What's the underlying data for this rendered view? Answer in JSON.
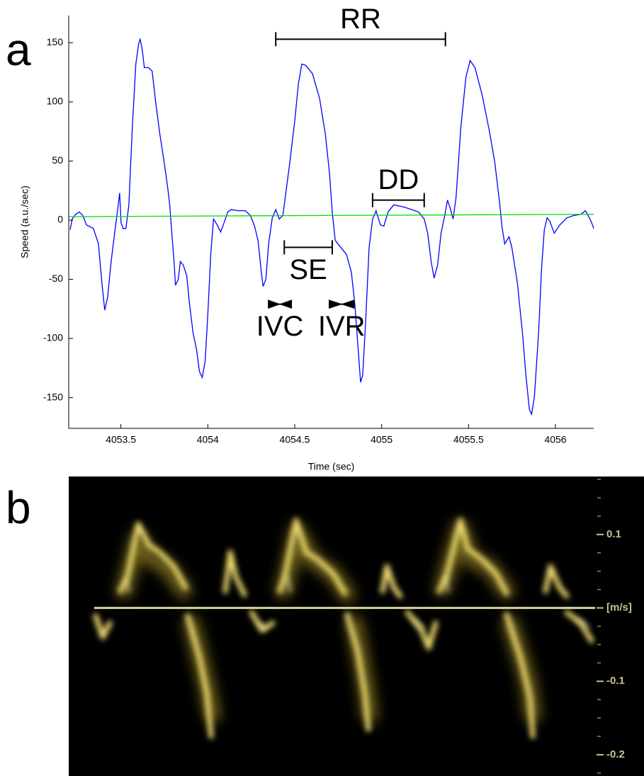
{
  "chart_data": [
    {
      "type": "line",
      "panel_label": "a",
      "xlabel": "Time (sec)",
      "ylabel": "Speed (a.u./sec)",
      "xlim": [
        4053.2,
        4056.22
      ],
      "ylim": [
        -176,
        173
      ],
      "xticks": [
        4053.5,
        4054,
        4054.5,
        4055,
        4055.5,
        4056
      ],
      "yticks": [
        -150,
        -100,
        -50,
        0,
        50,
        100,
        150
      ],
      "series": [
        {
          "color": "#0000ff",
          "x": [
            4053.208,
            4053.22,
            4053.241,
            4053.261,
            4053.281,
            4053.302,
            4053.342,
            4053.371,
            4053.391,
            4053.407,
            4053.424,
            4053.444,
            4053.464,
            4053.485,
            4053.493,
            4053.501,
            4053.513,
            4053.529,
            4053.546,
            4053.566,
            4053.586,
            4053.602,
            4053.611,
            4053.623,
            4053.635,
            4053.659,
            4053.68,
            4053.7,
            4053.724,
            4053.749,
            4053.769,
            4053.781,
            4053.793,
            4053.806,
            4053.814,
            4053.83,
            4053.842,
            4053.859,
            4053.879,
            4053.895,
            4053.915,
            4053.936,
            4053.952,
            4053.968,
            4053.985,
            4054.001,
            4054.017,
            4054.033,
            4054.054,
            4054.074,
            4054.094,
            4054.115,
            4054.135,
            4054.176,
            4054.216,
            4054.245,
            4054.269,
            4054.289,
            4054.306,
            4054.318,
            4054.334,
            4054.35,
            4054.371,
            4054.391,
            4054.411,
            4054.432,
            4054.448,
            4054.472,
            4054.501,
            4054.521,
            4054.541,
            4054.562,
            4054.602,
            4054.643,
            4054.676,
            4054.7,
            4054.716,
            4054.733,
            4054.765,
            4054.798,
            4054.826,
            4054.846,
            4054.867,
            4054.879,
            4054.891,
            4054.907,
            4054.928,
            4054.948,
            4054.968,
            4054.993,
            4055.013,
            4055.037,
            4055.07,
            4055.131,
            4055.212,
            4055.245,
            4055.265,
            4055.285,
            4055.302,
            4055.322,
            4055.342,
            4055.363,
            4055.379,
            4055.395,
            4055.411,
            4055.428,
            4055.456,
            4055.485,
            4055.509,
            4055.537,
            4055.578,
            4055.619,
            4055.651,
            4055.68,
            4055.692,
            4055.708,
            4055.733,
            4055.749,
            4055.781,
            4055.81,
            4055.83,
            4055.85,
            4055.863,
            4055.879,
            4055.903,
            4055.92,
            4055.936,
            4055.952,
            4055.968,
            4055.993,
            4056.025,
            4056.066,
            4056.107,
            4056.147,
            4056.172,
            4056.188,
            4056.208,
            4056.22
          ],
          "values": [
            -8,
            1,
            5,
            7,
            4,
            -4,
            -7,
            -20,
            -53,
            -76,
            -65,
            -35,
            -11,
            13,
            23,
            -2,
            -7,
            -7,
            13,
            79,
            132,
            149,
            153,
            144,
            129,
            129,
            126,
            100,
            73,
            49,
            28,
            13,
            -11,
            -35,
            -55,
            -50,
            -35,
            -38,
            -47,
            -71,
            -95,
            -110,
            -128,
            -133,
            -119,
            -77,
            -29,
            1,
            -4,
            -10,
            -2,
            7,
            9,
            8,
            8,
            4,
            -5,
            -17,
            -41,
            -56,
            -50,
            -20,
            2,
            9,
            1,
            4,
            22,
            49,
            85,
            115,
            132,
            131,
            124,
            103,
            73,
            40,
            7,
            -17,
            -23,
            -29,
            -44,
            -71,
            -113,
            -137,
            -131,
            -89,
            -23,
            1,
            8,
            -4,
            -5,
            7,
            13,
            11,
            7,
            1,
            -11,
            -35,
            -49,
            -38,
            -11,
            4,
            17,
            10,
            1,
            19,
            79,
            121,
            135,
            129,
            106,
            76,
            49,
            13,
            -5,
            -20,
            -14,
            -23,
            -53,
            -95,
            -131,
            -160,
            -164,
            -149,
            -95,
            -41,
            -8,
            2,
            -1,
            -11,
            -4,
            2,
            4,
            5,
            8,
            4,
            -2,
            -7
          ]
        },
        {
          "color": "#00e000",
          "x": [
            4053.2,
            4056.22
          ],
          "values": [
            3,
            5
          ]
        }
      ],
      "annotations": [
        {
          "text": "RR",
          "style": "bracket",
          "label_pos": "above",
          "x1": 4054.391,
          "x2": 4055.367,
          "y": 153
        },
        {
          "text": "SE",
          "style": "bracket",
          "label_pos": "below",
          "x1": 4054.44,
          "x2": 4054.716,
          "y": -23
        },
        {
          "text": "DD",
          "style": "bracket",
          "label_pos": "above",
          "x1": 4054.948,
          "x2": 4055.245,
          "y": 17
        },
        {
          "text": "IVC",
          "style": "arrows",
          "label_pos": "below",
          "x1": 4054.35,
          "x2": 4054.48,
          "y": -71
        },
        {
          "text": "IVR",
          "style": "arrows",
          "label_pos": "below",
          "x1": 4054.7,
          "x2": 4054.84,
          "y": -71
        }
      ]
    },
    {
      "type": "doppler",
      "panel_label": "b",
      "ylim": [
        -0.229,
        0.179
      ],
      "yticks": [
        0.1,
        {
          "value": 0,
          "label": "[m/s]"
        },
        -0.1,
        -0.2
      ],
      "minor_yticks": [
        0.175,
        0.15,
        0.125,
        0.075,
        0.05,
        0.025,
        -0.025,
        -0.05,
        -0.075,
        -0.125,
        -0.15,
        -0.175,
        -0.225
      ],
      "baseline_color": "#d8d49a"
    }
  ]
}
